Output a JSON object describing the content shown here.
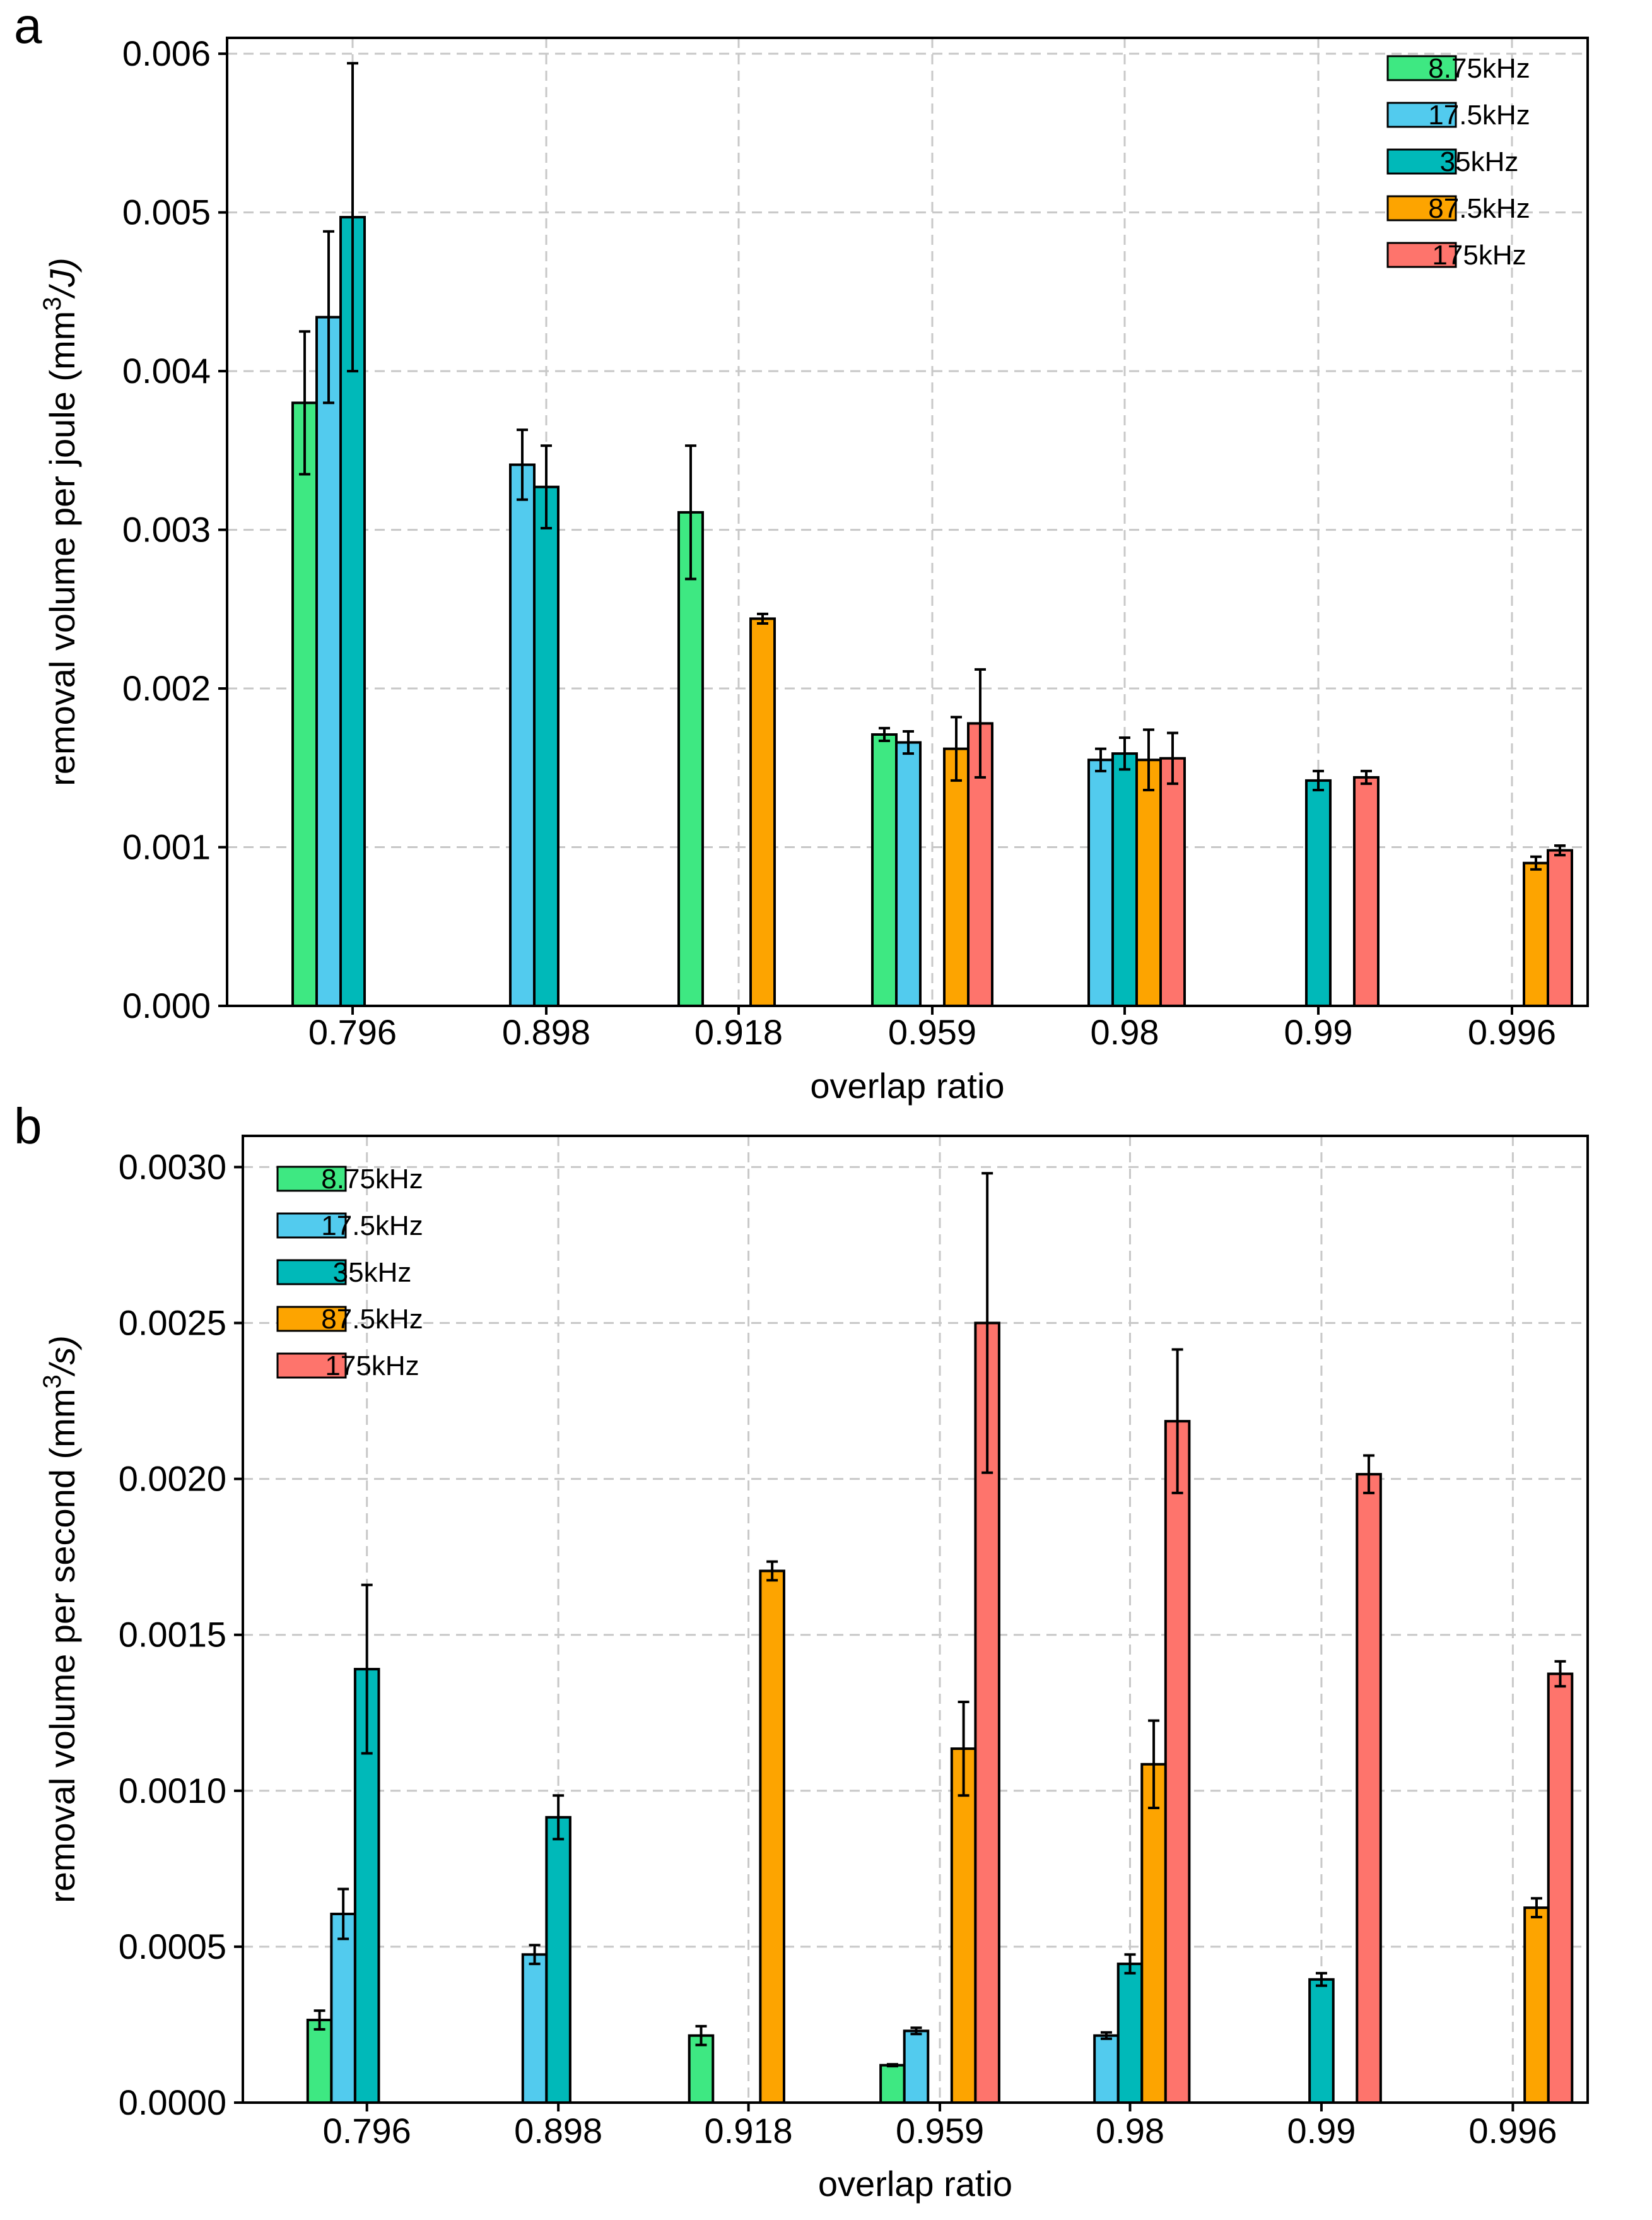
{
  "chart_data": [
    {
      "panel_label": "a",
      "type": "bar",
      "title": "",
      "xlabel": "overlap ratio",
      "ylabel": "removal volume per joule (mm³/J)",
      "ylabel_parts": {
        "prefix": "removal volume per joule (mm",
        "sup": "3",
        "suffix": "/J)"
      },
      "categories": [
        "0.796",
        "0.898",
        "0.918",
        "0.959",
        "0.98",
        "0.99",
        "0.996"
      ],
      "ylim": [
        0,
        0.0061
      ],
      "yticks": [
        0,
        0.001,
        0.002,
        0.003,
        0.004,
        0.005,
        0.006
      ],
      "ytick_labels": [
        "0.000",
        "0.001",
        "0.002",
        "0.003",
        "0.004",
        "0.005",
        "0.006"
      ],
      "grid": true,
      "legend_position": "top-right",
      "series": [
        {
          "name": "8.75kHz",
          "color": "#3ee882",
          "values": [
            0.0038,
            null,
            0.00311,
            0.00171,
            null,
            null,
            null
          ],
          "errors": [
            0.00045,
            null,
            0.00042,
            4e-05,
            null,
            null,
            null
          ]
        },
        {
          "name": "17.5kHz",
          "color": "#52cbee",
          "values": [
            0.00434,
            0.00341,
            null,
            0.00166,
            0.00155,
            null,
            null
          ],
          "errors": [
            0.00054,
            0.00022,
            null,
            7e-05,
            7e-05,
            null,
            null
          ]
        },
        {
          "name": "35kHz",
          "color": "#00b9b9",
          "values": [
            0.00497,
            0.00327,
            null,
            null,
            0.00159,
            0.00142,
            null
          ],
          "errors": [
            0.00097,
            0.00026,
            null,
            null,
            0.0001,
            6e-05,
            null
          ]
        },
        {
          "name": "87.5kHz",
          "color": "#fda400",
          "values": [
            null,
            null,
            0.00244,
            0.00162,
            0.00155,
            null,
            0.0009
          ],
          "errors": [
            null,
            null,
            3e-05,
            0.0002,
            0.00019,
            null,
            4e-05
          ]
        },
        {
          "name": "175kHz",
          "color": "#fe746c",
          "values": [
            null,
            null,
            null,
            0.00178,
            0.00156,
            0.00144,
            0.00098
          ],
          "errors": [
            null,
            null,
            null,
            0.00034,
            0.00016,
            4e-05,
            3e-05
          ]
        }
      ]
    },
    {
      "panel_label": "b",
      "type": "bar",
      "title": "",
      "xlabel": "overlap ratio",
      "ylabel": "removal volume per second (mm³/s)",
      "ylabel_parts": {
        "prefix": "removal volume per second (mm",
        "sup": "3",
        "suffix": "/s)"
      },
      "categories": [
        "0.796",
        "0.898",
        "0.918",
        "0.959",
        "0.98",
        "0.99",
        "0.996"
      ],
      "ylim": [
        0,
        0.0031
      ],
      "yticks": [
        0,
        0.0005,
        0.001,
        0.0015,
        0.002,
        0.0025,
        0.003
      ],
      "ytick_labels": [
        "0.0000",
        "0.0005",
        "0.0010",
        "0.0015",
        "0.0020",
        "0.0025",
        "0.0030"
      ],
      "grid": true,
      "legend_position": "top-left",
      "series": [
        {
          "name": "8.75kHz",
          "color": "#3ee882",
          "values": [
            0.000265,
            null,
            0.000215,
            0.00012,
            null,
            null,
            null
          ],
          "errors": [
            3e-05,
            null,
            3e-05,
            3e-06,
            null,
            null,
            null
          ]
        },
        {
          "name": "17.5kHz",
          "color": "#52cbee",
          "values": [
            0.000605,
            0.000475,
            null,
            0.00023,
            0.000215,
            null,
            null
          ],
          "errors": [
            8e-05,
            3e-05,
            null,
            1e-05,
            1e-05,
            null,
            null
          ]
        },
        {
          "name": "35kHz",
          "color": "#00b9b9",
          "values": [
            0.00139,
            0.000915,
            null,
            null,
            0.000445,
            0.000395,
            null
          ],
          "errors": [
            0.00027,
            7e-05,
            null,
            null,
            3e-05,
            2e-05,
            null
          ]
        },
        {
          "name": "87.5kHz",
          "color": "#fda400",
          "values": [
            null,
            null,
            0.001705,
            0.001135,
            0.001085,
            null,
            0.000625
          ],
          "errors": [
            null,
            null,
            3e-05,
            0.00015,
            0.00014,
            null,
            3e-05
          ]
        },
        {
          "name": "175kHz",
          "color": "#fe746c",
          "values": [
            null,
            null,
            null,
            0.0025,
            0.002185,
            0.002015,
            0.001375
          ],
          "errors": [
            null,
            null,
            null,
            0.00048,
            0.00023,
            6e-05,
            4e-05
          ]
        }
      ]
    }
  ]
}
